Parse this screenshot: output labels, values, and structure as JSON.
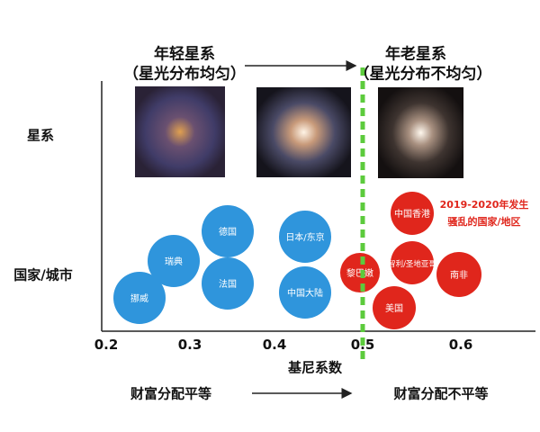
{
  "header": {
    "young_title": "年轻星系",
    "young_sub": "（星光分布均匀）",
    "old_title": "年老星系",
    "old_sub": "（星光分布不均匀）"
  },
  "row_labels": {
    "galaxy": "星系",
    "country": "国家/城市"
  },
  "annotation": {
    "line1": "2019-2020年发生",
    "line2": "骚乱的国家/地区"
  },
  "colors": {
    "equal": "#2f95dc",
    "unequal": "#e0261c",
    "threshold": "#5ccb3c"
  },
  "chart_data": {
    "type": "scatter",
    "xlabel": "基尼系数",
    "xticks": [
      "0.2",
      "0.3",
      "0.4",
      "0.5",
      "0.6"
    ],
    "xlim": [
      0.2,
      0.67
    ],
    "threshold": 0.5,
    "points": [
      {
        "label": "挪威",
        "gini": 0.24,
        "group": "equal"
      },
      {
        "label": "瑞典",
        "gini": 0.28,
        "group": "equal"
      },
      {
        "label": "德国",
        "gini": 0.34,
        "group": "equal"
      },
      {
        "label": "法国",
        "gini": 0.34,
        "group": "equal"
      },
      {
        "label": "日本/东京",
        "gini": 0.43,
        "group": "equal"
      },
      {
        "label": "中国大陆",
        "gini": 0.43,
        "group": "equal"
      },
      {
        "label": "黎巴嫩",
        "gini": 0.5,
        "group": "unequal"
      },
      {
        "label": "智利/圣地亚哥",
        "gini": 0.55,
        "group": "unequal"
      },
      {
        "label": "中国香港",
        "gini": 0.55,
        "group": "unequal"
      },
      {
        "label": "美国",
        "gini": 0.53,
        "group": "unequal"
      },
      {
        "label": "南非",
        "gini": 0.6,
        "group": "unequal"
      }
    ]
  },
  "footer": {
    "left": "财富分配平等",
    "right": "财富分配不平等"
  }
}
